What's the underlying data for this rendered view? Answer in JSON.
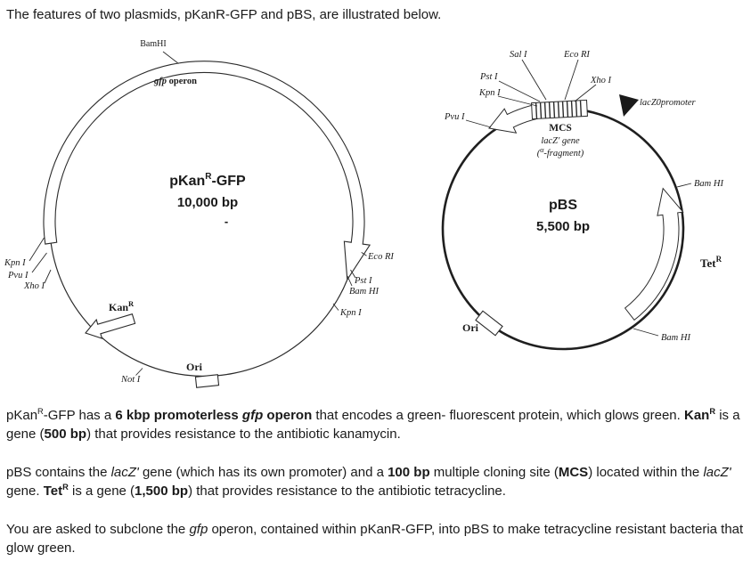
{
  "colors": {
    "ink": "#1a1a1a",
    "paper": "#ffffff"
  },
  "intro": "The features of two plasmids, pKanR-GFP and pBS, are illustrated below.",
  "pkan": {
    "name_pre": "pKan",
    "name_sup": "R",
    "name_post": "-GFP",
    "size": "10,000 bp",
    "dash": "-",
    "gfp_italic": "gfp",
    "gfp_rest": " operon",
    "bamhi_top": "BamHI",
    "ecori": "Eco RI",
    "psti": "Pst I",
    "bamhi_right": "Bam HI",
    "kpni_right": "Kpn I",
    "kpni_left": "Kpn I",
    "pvui_left": "Pvu I",
    "xhoi_left": "Xho I",
    "kan_base": "Kan",
    "kan_sup": "R",
    "ori": "Ori",
    "noti": "Not I"
  },
  "pbs": {
    "name": "pBS",
    "size": "5,500 bp",
    "sali": "Sal I",
    "ecori": "Eco RI",
    "xhoi": "Xho I",
    "psti": "Pst I",
    "kpni": "Kpn I",
    "pvui": "Pvu I",
    "promoter": "lacZ0promoter",
    "mcs": "MCS",
    "lacz_gene": "lacZ' gene",
    "frag_pre": "(",
    "frag_sup": "α",
    "frag_post": "-fragment)",
    "bamhi_upper": "Bam HI",
    "bamhi_lower": "Bam HI",
    "tet_base": "Tet",
    "tet_sup": "R",
    "ori": "Ori"
  },
  "paragraphs": [
    [
      {
        "t": "pKan"
      },
      {
        "t": "R",
        "s": 1
      },
      {
        "t": "-GFP has a "
      },
      {
        "t": "6 kbp promoterless ",
        "b": 1
      },
      {
        "t": "gfp",
        "b": 1,
        "i": 1
      },
      {
        "t": " operon",
        "b": 1
      },
      {
        "t": " that encodes a green- fluorescent protein, which glows green. "
      },
      {
        "t": "Kan",
        "b": 1
      },
      {
        "t": "R",
        "b": 1,
        "s": 1
      },
      {
        "t": " is a gene ("
      },
      {
        "t": "500 bp",
        "b": 1
      },
      {
        "t": ") that provides resistance to the antibiotic kanamycin."
      }
    ],
    [
      {
        "t": "pBS contains the "
      },
      {
        "t": "lacZ'",
        "i": 1
      },
      {
        "t": " gene (which has its own promoter) and a "
      },
      {
        "t": "100 bp",
        "b": 1
      },
      {
        "t": " multiple cloning site ("
      },
      {
        "t": "MCS",
        "b": 1
      },
      {
        "t": ") located within the "
      },
      {
        "t": "lacZ'",
        "i": 1
      },
      {
        "t": " gene. "
      },
      {
        "t": "Tet",
        "b": 1
      },
      {
        "t": "R",
        "b": 1,
        "s": 1
      },
      {
        "t": " is a gene ("
      },
      {
        "t": "1,500 bp",
        "b": 1
      },
      {
        "t": ") that provides resistance to the antibiotic tetracycline."
      }
    ],
    [
      {
        "t": "You are asked to subclone the "
      },
      {
        "t": "gfp",
        "i": 1
      },
      {
        "t": " operon, contained within pKanR-GFP, into pBS to make tetracycline resistant bacteria that glow green."
      }
    ]
  ]
}
